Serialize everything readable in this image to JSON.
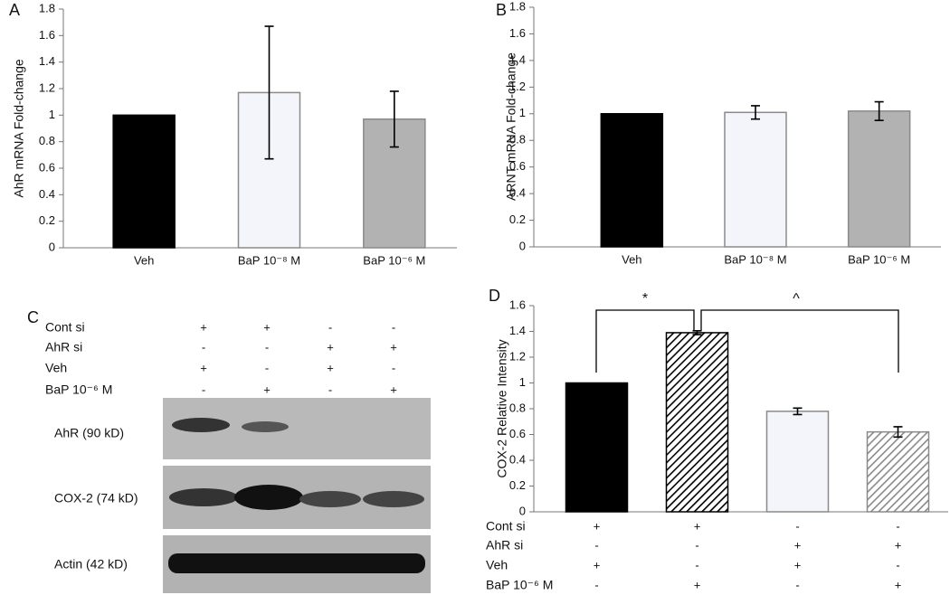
{
  "chart_data": [
    {
      "type": "bar",
      "panel": "A",
      "ylabel": "AhR mRNA Fold-change",
      "categories": [
        "Veh",
        "BaP 10⁻⁸ M",
        "BaP 10⁻⁶ M"
      ],
      "values": [
        1,
        1.17,
        0.97
      ],
      "errors": [
        null,
        0.5,
        0.21
      ],
      "colors": [
        "#000000",
        "#f4f5fa",
        "#b2b2b2"
      ],
      "hatched": [
        false,
        false,
        false
      ],
      "ylim": [
        0,
        1.8
      ],
      "yticks": [
        0,
        0.2,
        0.4,
        0.6,
        0.8,
        1,
        1.2,
        1.4,
        1.6,
        1.8
      ]
    },
    {
      "type": "bar",
      "panel": "B",
      "ylabel": "ARNT mRNA Fold-change",
      "categories": [
        "Veh",
        "BaP 10⁻⁸ M",
        "BaP 10⁻⁶ M"
      ],
      "values": [
        1,
        1.01,
        1.02
      ],
      "errors": [
        null,
        0.05,
        0.07
      ],
      "colors": [
        "#000000",
        "#f4f5fa",
        "#b2b2b2"
      ],
      "hatched": [
        false,
        false,
        false
      ],
      "ylim": [
        0,
        1.8
      ],
      "yticks": [
        0,
        0.2,
        0.4,
        0.6,
        0.8,
        1,
        1.2,
        1.4,
        1.6,
        1.8
      ]
    },
    {
      "type": "bar",
      "panel": "D",
      "ylabel": "COX-2 Relative Intensity",
      "categories": [
        null,
        null,
        null,
        null
      ],
      "values": [
        1,
        1.39,
        0.78,
        0.62
      ],
      "errors": [
        null,
        0.015,
        0.025,
        0.04
      ],
      "colors": [
        "#000000",
        "#000000",
        "#f4f5fa",
        "#888888"
      ],
      "hatched": [
        false,
        true,
        false,
        true
      ],
      "ylim": [
        0,
        1.6
      ],
      "yticks": [
        0,
        0.2,
        0.4,
        0.6,
        0.8,
        1,
        1.2,
        1.4,
        1.6
      ],
      "treatments": [
        {
          "name": "Cont si",
          "signs": [
            "+",
            "+",
            "-",
            "-"
          ]
        },
        {
          "name": "AhR si",
          "signs": [
            "-",
            "-",
            "+",
            "+"
          ]
        },
        {
          "name": "Veh",
          "signs": [
            "+",
            "-",
            "+",
            "-"
          ]
        },
        {
          "name": "BaP 10⁻⁶ M",
          "signs": [
            "-",
            "+",
            "-",
            "+"
          ]
        }
      ],
      "annotations": [
        "*",
        "^"
      ]
    }
  ],
  "blot": {
    "panel": "C",
    "treatments": [
      {
        "name": "Cont si",
        "signs": [
          "+",
          "+",
          "-",
          "-"
        ]
      },
      {
        "name": "AhR si",
        "signs": [
          "-",
          "-",
          "+",
          "+"
        ]
      },
      {
        "name": "Veh",
        "signs": [
          "+",
          "-",
          "+",
          "-"
        ]
      },
      {
        "name": "BaP 10⁻⁶ M",
        "signs": [
          "-",
          "+",
          "-",
          "+"
        ]
      }
    ],
    "bands": [
      "AhR (90 kD)",
      "COX-2 (74 kD)",
      "Actin (42 kD)"
    ]
  }
}
